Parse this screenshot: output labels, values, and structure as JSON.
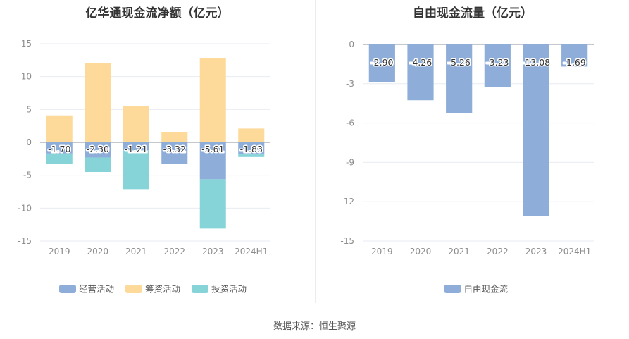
{
  "source": "数据来源：恒生聚源",
  "chart_data": [
    {
      "type": "bar",
      "stacked": true,
      "title": "亿华通现金流净额（亿元）",
      "categories": [
        "2019",
        "2020",
        "2021",
        "2022",
        "2023",
        "2024H1"
      ],
      "yticks": [
        15,
        10,
        5,
        0,
        -5,
        -10,
        -15
      ],
      "ylim": [
        -15,
        15
      ],
      "grid": true,
      "legend_position": "bottom",
      "series": [
        {
          "name": "经营活动",
          "color": "#8eadd9",
          "values": [
            -1.7,
            -2.3,
            -1.21,
            -3.32,
            -5.61,
            -1.83
          ],
          "labels": [
            "-1.70",
            "-2.30",
            "-1.21",
            "-3.32",
            "-5.61",
            "-1.83"
          ]
        },
        {
          "name": "筹资活动",
          "color": "#fdd99a",
          "values": [
            4.1,
            12.1,
            5.5,
            1.5,
            12.8,
            2.1
          ]
        },
        {
          "name": "投资活动",
          "color": "#86d4d8",
          "values": [
            -1.6,
            -2.2,
            -5.9,
            0.0,
            -7.5,
            -0.4
          ]
        }
      ]
    },
    {
      "type": "bar",
      "title": "自由现金流量（亿元）",
      "categories": [
        "2019",
        "2020",
        "2021",
        "2022",
        "2023",
        "2024H1"
      ],
      "yticks": [
        0,
        -3,
        -6,
        -9,
        -12,
        -15
      ],
      "ylim": [
        -15,
        0
      ],
      "grid": true,
      "legend_position": "bottom",
      "series": [
        {
          "name": "自由现金流",
          "color": "#8eadd9",
          "values": [
            -2.9,
            -4.26,
            -5.26,
            -3.23,
            -13.08,
            -1.69
          ],
          "labels": [
            "-2.90",
            "-4.26",
            "-5.26",
            "-3.23",
            "-13.08",
            "-1.69"
          ]
        }
      ]
    }
  ]
}
